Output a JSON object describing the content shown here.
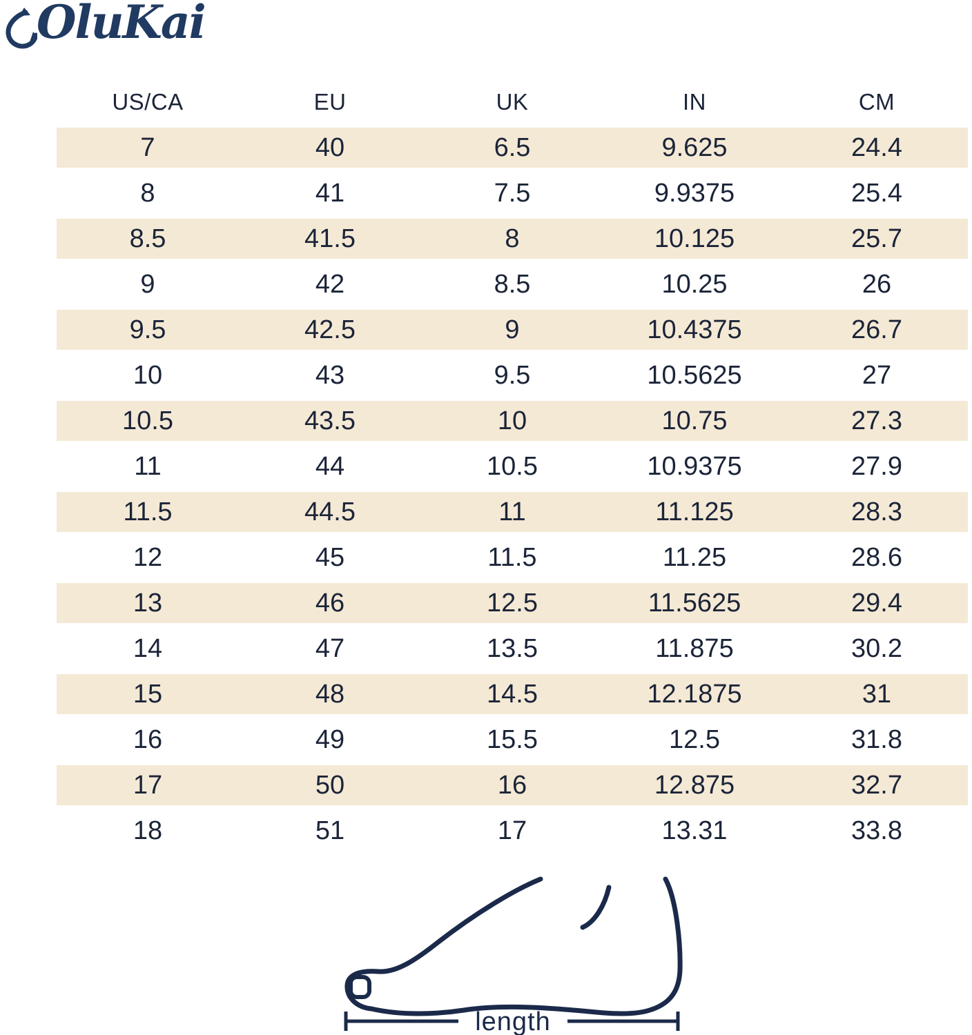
{
  "logo": {
    "text": "OluKai",
    "color": "#203a61",
    "icon": "fish-hook-icon"
  },
  "table": {
    "columns": [
      "US/CA",
      "EU",
      "UK",
      "IN",
      "CM"
    ],
    "rows": [
      [
        "7",
        "40",
        "6.5",
        "9.625",
        "24.4"
      ],
      [
        "8",
        "41",
        "7.5",
        "9.9375",
        "25.4"
      ],
      [
        "8.5",
        "41.5",
        "8",
        "10.125",
        "25.7"
      ],
      [
        "9",
        "42",
        "8.5",
        "10.25",
        "26"
      ],
      [
        "9.5",
        "42.5",
        "9",
        "10.4375",
        "26.7"
      ],
      [
        "10",
        "43",
        "9.5",
        "10.5625",
        "27"
      ],
      [
        "10.5",
        "43.5",
        "10",
        "10.75",
        "27.3"
      ],
      [
        "11",
        "44",
        "10.5",
        "10.9375",
        "27.9"
      ],
      [
        "11.5",
        "44.5",
        "11",
        "11.125",
        "28.3"
      ],
      [
        "12",
        "45",
        "11.5",
        "11.25",
        "28.6"
      ],
      [
        "13",
        "46",
        "12.5",
        "11.5625",
        "29.4"
      ],
      [
        "14",
        "47",
        "13.5",
        "11.875",
        "30.2"
      ],
      [
        "15",
        "48",
        "14.5",
        "12.1875",
        "31"
      ],
      [
        "16",
        "49",
        "15.5",
        "12.5",
        "31.8"
      ],
      [
        "17",
        "50",
        "16",
        "12.875",
        "32.7"
      ],
      [
        "18",
        "51",
        "17",
        "13.31",
        "33.8"
      ]
    ],
    "stripe_color": "#f4e9d5",
    "text_color": "#1b2438"
  },
  "figure": {
    "length_label": "length",
    "line_color": "#1b2a4a"
  }
}
